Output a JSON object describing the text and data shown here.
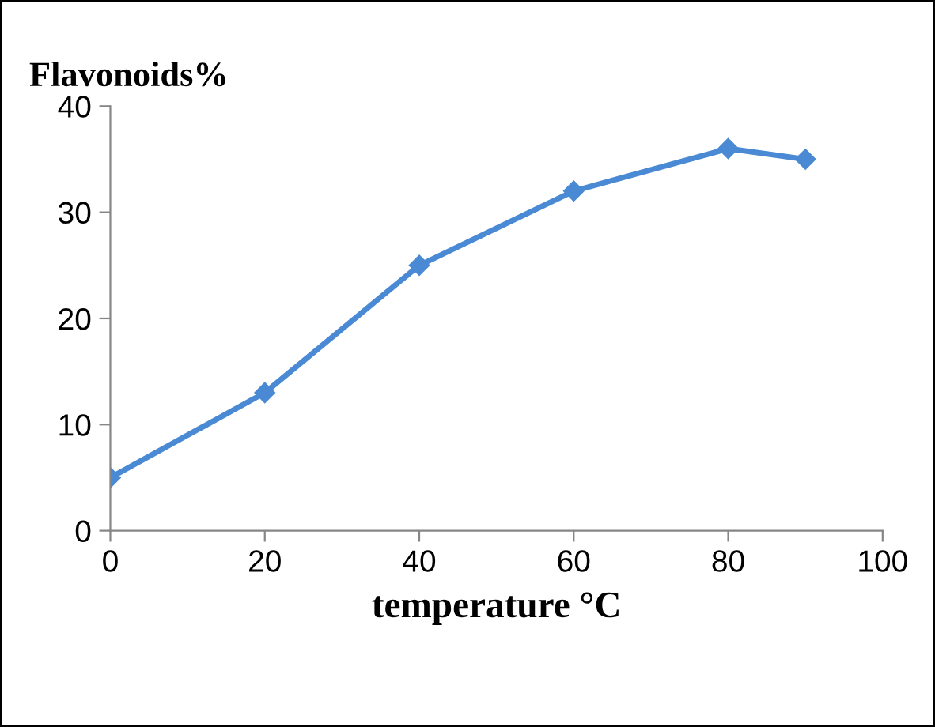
{
  "chart_data": {
    "type": "line",
    "xlabel": "temperature °C",
    "ylabel": "Flavonoids%",
    "x": [
      0,
      20,
      40,
      60,
      80,
      90
    ],
    "series": [
      {
        "color": "#4a8ad4",
        "values": [
          5,
          13,
          25,
          32,
          36,
          35
        ]
      }
    ],
    "xlim": [
      0,
      100
    ],
    "xticks": [
      0,
      20,
      40,
      60,
      80,
      100
    ],
    "ylim": [
      0,
      40
    ],
    "yticks": [
      0,
      10,
      20,
      30,
      40
    ],
    "grid": false,
    "legend": false,
    "marker": "diamond",
    "line_style": "solid"
  }
}
